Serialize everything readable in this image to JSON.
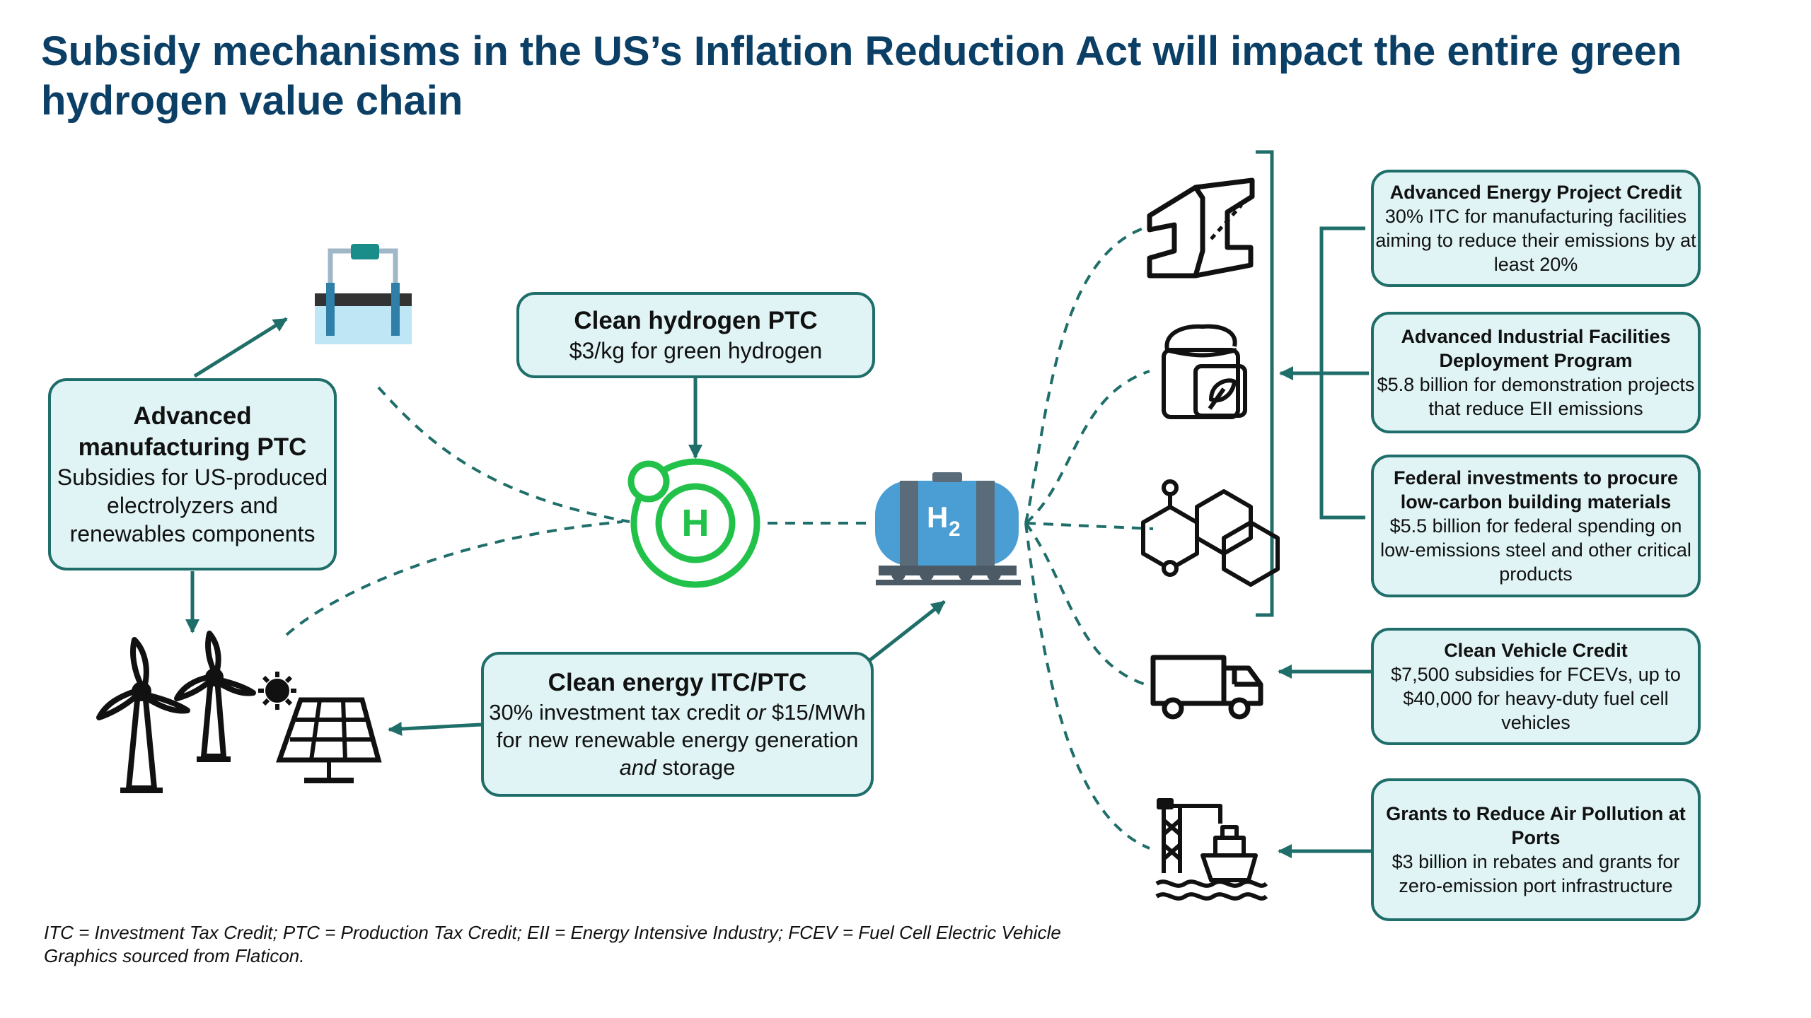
{
  "title": "Subsidy mechanisms in the US’s Inflation Reduction Act will impact the entire green hydrogen value chain",
  "left_boxes": {
    "advanced_manufacturing": {
      "title": "Advanced manufacturing PTC",
      "body": "Subsidies for US-produced electrolyzers and renewables components"
    },
    "clean_hydrogen": {
      "title": "Clean hydrogen PTC",
      "body": "$3/kg for green hydrogen"
    },
    "clean_energy": {
      "title": "Clean energy ITC/PTC",
      "body_part1": "30% investment tax credit ",
      "body_or": "or",
      "body_part2": " $15/MWh for new renewable energy generation ",
      "body_and": "and",
      "body_part3": " storage"
    }
  },
  "right_boxes": [
    {
      "title": "Advanced Energy Project Credit",
      "body": "30% ITC for manufacturing facilities aiming to reduce their emissions by at least 20%"
    },
    {
      "title": "Advanced Industrial Facilities Deployment Program",
      "body": "$5.8 billion for demonstration projects that reduce EII emissions"
    },
    {
      "title": "Federal investments to procure low-carbon building materials",
      "body": "$5.5 billion for federal spending on low-emissions steel and other critical products"
    },
    {
      "title": "Clean Vehicle Credit",
      "body": "$7,500 subsidies for FCEVs, up to $40,000 for heavy-duty fuel cell vehicles"
    },
    {
      "title": "Grants to Reduce Air Pollution at Ports",
      "body": "$3 billion in rebates and grants for zero-emission port infrastructure"
    }
  ],
  "icons": {
    "hydrogen_atom": "hydrogen-atom-icon",
    "hydrogen_atom_label": "H",
    "tank": "hydrogen-tank-car-icon",
    "tank_label_h": "H",
    "tank_label_sub": "2",
    "electrolyzer": "electrolyzer-icon",
    "wind": "wind-turbine-icon",
    "solar": "solar-panel-icon",
    "steel": "steel-beam-icon",
    "fertilizer": "fertilizer-bag-icon",
    "chemicals": "chemical-molecule-icon",
    "truck": "truck-icon",
    "port": "port-ship-icon"
  },
  "colors": {
    "title": "#0b3f66",
    "box_fill": "#e0f4f5",
    "box_border": "#1f6e6a",
    "arrow": "#1f6e6a",
    "atom_green": "#22c24a",
    "tank_blue": "#4a9ed4"
  },
  "footnote": {
    "line1": "ITC = Investment Tax Credit; PTC = Production Tax Credit; EII = Energy Intensive Industry; FCEV = Fuel Cell Electric Vehicle",
    "line2": "Graphics sourced from Flaticon."
  }
}
